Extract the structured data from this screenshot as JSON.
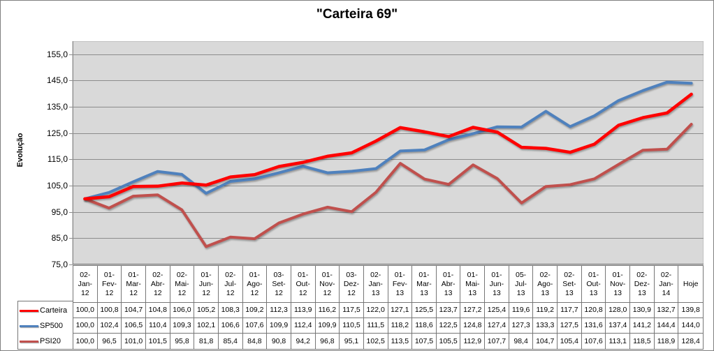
{
  "chart_data": {
    "type": "line",
    "title": "\"Carteira 69\"",
    "ylabel": "Evolução",
    "ylim": [
      75,
      160
    ],
    "yticks": [
      155,
      145,
      135,
      125,
      115,
      105,
      95,
      85,
      75
    ],
    "grid": "horizontal-major",
    "legend_position": "bottom-left-keys-beside-data-table",
    "decimal_separator": ",",
    "categories": [
      "02-Jan-12",
      "01-Fev-12",
      "01-Mar-12",
      "02-Abr-12",
      "02-Mai-12",
      "01-Jun-12",
      "02-Jul-12",
      "01-Ago-12",
      "03-Set-12",
      "01-Out-12",
      "01-Nov-12",
      "03-Dez-12",
      "02-Jan-13",
      "01-Fev-13",
      "01-Mar-13",
      "01-Abr-13",
      "01-Mai-13",
      "01-Jun-13",
      "05-Jul-13",
      "02-Ago-13",
      "02-Set-13",
      "01-Out-13",
      "01-Nov-13",
      "02-Dez-13",
      "02-Jan-14",
      "Hoje"
    ],
    "series": [
      {
        "name": "Carteira",
        "color": "#FF0000",
        "values": [
          100.0,
          100.8,
          104.7,
          104.8,
          106.0,
          105.2,
          108.3,
          109.2,
          112.3,
          113.9,
          116.2,
          117.5,
          122.0,
          127.1,
          125.5,
          123.7,
          127.2,
          125.4,
          119.6,
          119.2,
          117.7,
          120.8,
          128.0,
          130.9,
          132.7,
          139.8
        ]
      },
      {
        "name": "SP500",
        "color": "#4F81BD",
        "values": [
          100.0,
          102.4,
          106.5,
          110.4,
          109.3,
          102.1,
          106.6,
          107.6,
          109.9,
          112.4,
          109.9,
          110.5,
          111.5,
          118.2,
          118.6,
          122.5,
          124.8,
          127.4,
          127.3,
          133.3,
          127.5,
          131.6,
          137.4,
          141.2,
          144.4,
          144.0
        ]
      },
      {
        "name": "PSI20",
        "color": "#C0504D",
        "values": [
          100.0,
          96.5,
          101.0,
          101.5,
          95.8,
          81.8,
          85.4,
          84.8,
          90.8,
          94.2,
          96.8,
          95.1,
          102.5,
          113.5,
          107.5,
          105.5,
          112.9,
          107.7,
          98.4,
          104.7,
          105.4,
          107.6,
          113.1,
          118.5,
          118.9,
          128.4
        ]
      }
    ]
  },
  "colors": {
    "plot_bg": "#D9D9D9",
    "gridline": "#8C8C8C",
    "plot_border": "#A9A9A9",
    "axis_line": "#6E6E6E",
    "table_border": "#767676",
    "chart_border": "#808080",
    "text": "#000000"
  }
}
